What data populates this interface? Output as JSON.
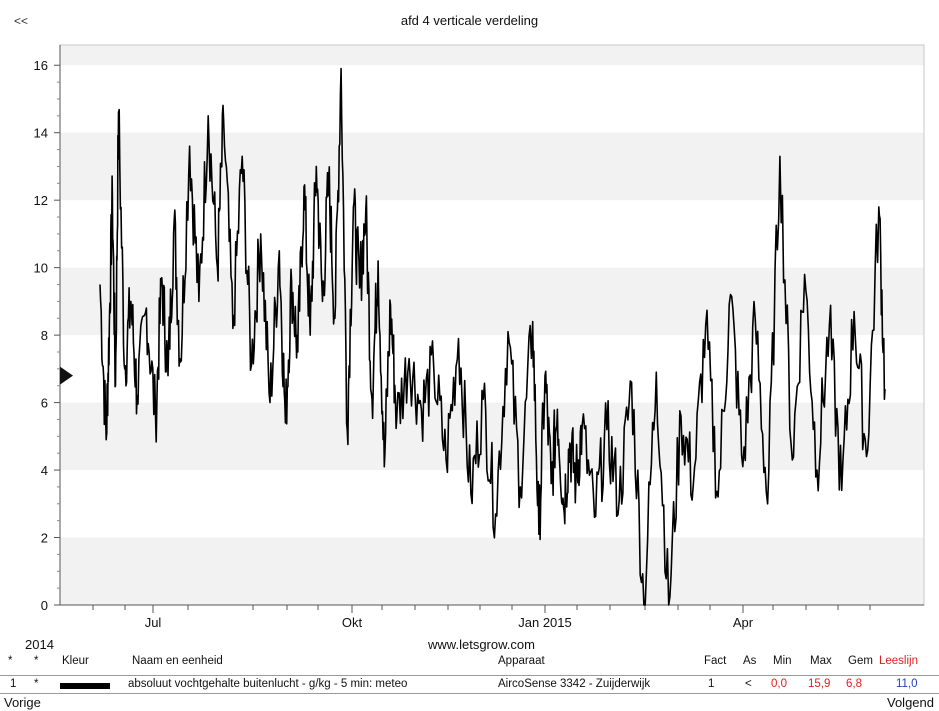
{
  "nav": {
    "back": "<<",
    "prev": "Vorige",
    "next": "Volgend"
  },
  "chart_data": {
    "type": "line",
    "title": "afd 4 verticale verdeling",
    "xlabel": "",
    "ylabel": "",
    "x_ticks": [
      "Jul",
      "Okt",
      "Jan 2015",
      "Apr"
    ],
    "year_label": "2014",
    "y_ticks": [
      0,
      2,
      4,
      6,
      8,
      10,
      12,
      14,
      16
    ],
    "ylim": [
      0,
      16.6
    ],
    "grid": "alternating horizontal bands",
    "marker_value": 6.8,
    "series": [
      {
        "name": "absoluut vochtgehalte buitenlucht - g/kg - 5 min: meteo",
        "color": "#000000",
        "x_months": [
          0.0,
          0.1,
          0.15,
          0.2,
          0.25,
          0.3,
          0.4,
          0.5,
          0.6,
          0.75,
          0.9,
          1.0,
          1.1,
          1.2,
          1.3,
          1.45,
          1.6,
          1.75,
          1.9,
          2.0,
          2.15,
          2.3,
          2.45,
          2.6,
          2.75,
          2.9,
          3.0,
          3.1,
          3.2,
          3.3,
          3.4,
          3.5,
          3.6,
          3.7,
          3.8,
          3.9,
          4.0,
          4.1,
          4.2,
          4.3,
          4.4,
          4.5,
          4.6,
          4.7,
          4.8,
          5.0,
          5.2,
          5.4,
          5.6,
          5.8,
          6.0,
          6.2,
          6.4,
          6.6,
          6.8,
          7.0,
          7.1,
          7.2,
          7.3,
          7.4,
          7.5,
          7.6,
          7.7,
          7.8,
          8.0,
          8.2,
          8.4,
          8.6,
          8.8,
          9.0,
          9.2,
          9.4,
          9.6,
          9.8,
          10.0,
          10.2,
          10.4,
          10.6,
          10.8,
          11.0,
          11.2,
          11.4,
          11.6,
          11.8,
          12.0,
          12.2,
          12.4,
          12.6,
          12.7
        ],
        "values": [
          9.5,
          4.9,
          8.2,
          12.1,
          6.5,
          14.6,
          7.0,
          9.0,
          6.2,
          8.8,
          5.5,
          9.7,
          6.8,
          11.4,
          7.2,
          13.6,
          9.0,
          14.5,
          10.0,
          14.4,
          8.2,
          13.3,
          7.1,
          11.0,
          6.0,
          10.5,
          5.4,
          9.6,
          7.5,
          12.4,
          8.0,
          13.0,
          9.0,
          12.6,
          8.5,
          15.9,
          5.2,
          11.8,
          9.4,
          11.7,
          6.1,
          10.2,
          4.1,
          8.9,
          5.5,
          7.3,
          5.8,
          7.0,
          4.3,
          7.9,
          3.3,
          6.1,
          2.7,
          8.1,
          3.5,
          8.4,
          2.1,
          6.8,
          3.6,
          5.8,
          2.9,
          4.8,
          3.7,
          5.3,
          2.6,
          5.2,
          3.1,
          6.6,
          0.0,
          6.9,
          0.0,
          5.6,
          3.6,
          8.3,
          3.2,
          9.2,
          4.1,
          8.5,
          3.0,
          13.3,
          4.3,
          9.8,
          4.0,
          8.3,
          3.4,
          8.7,
          4.4,
          11.8,
          6.4
        ]
      }
    ]
  },
  "footer": {
    "year": "2014",
    "url": "www.letsgrow.com"
  },
  "legend": {
    "headers": {
      "star1": "*",
      "star2": "*",
      "color": "Kleur",
      "name": "Naam en eenheid",
      "device": "Apparaat",
      "factor": "Fact",
      "axis": "As",
      "min": "Min",
      "max": "Max",
      "avg": "Gem",
      "read": "Leeslijn"
    },
    "row": {
      "index": "1",
      "star": "*",
      "name": "absoluut vochtgehalte buitenlucht - g/kg - 5 min: meteo",
      "device": "AircoSense 3342 - Zuijderwijk",
      "factor": "1",
      "axis": "<",
      "min": "0,0",
      "max": "15,9",
      "avg": "6,8",
      "read": "11,0"
    }
  }
}
